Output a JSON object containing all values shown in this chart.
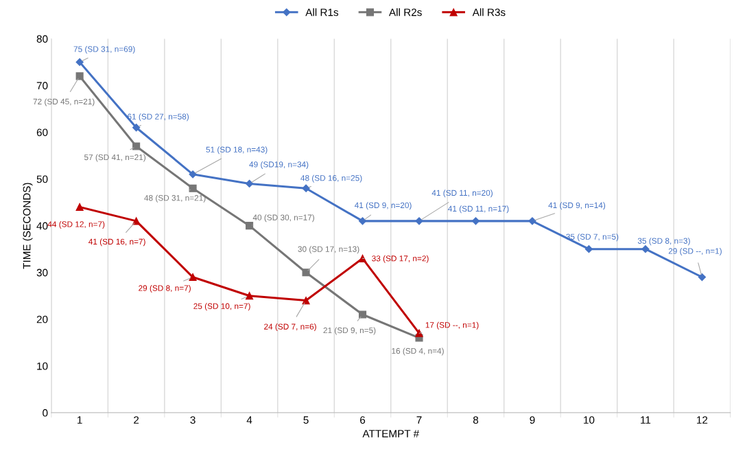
{
  "chart_data": {
    "type": "line",
    "xlabel": "ATTEMPT #",
    "ylabel": "TIME (SECONDS)",
    "categories": [
      "1",
      "2",
      "3",
      "4",
      "5",
      "6",
      "7",
      "8",
      "9",
      "10",
      "11",
      "12"
    ],
    "ylim": [
      0,
      80
    ],
    "yticks": [
      0,
      10,
      20,
      30,
      40,
      50,
      60,
      70,
      80
    ],
    "grid": "x",
    "legend": "top",
    "series": [
      {
        "name": "All R1s",
        "color": "#4472c4",
        "marker": "diamond",
        "values": [
          75,
          61,
          51,
          49,
          48,
          41,
          41,
          41,
          41,
          35,
          35,
          29
        ],
        "value_labels": [
          "75 (SD 31, n=69)",
          "61 (SD 27, n=58)",
          "51 (SD 18, n=43)",
          "49 (SD19, n=34)",
          "48 (SD 16, n=25)",
          "41 (SD 9, n=20)",
          "41 (SD 11, n=20)",
          "41 (SD 11, n=17)",
          "41 (SD 9, n=14)",
          "35 (SD 7, n=5)",
          "35 (SD 8, n=3)",
          "29 (SD --, n=1)"
        ]
      },
      {
        "name": "All R2s",
        "color": "#767676",
        "marker": "square",
        "values": [
          72,
          57,
          48,
          40,
          30,
          21,
          16,
          null,
          null,
          null,
          null,
          null
        ],
        "value_labels": [
          "72 (SD 45, n=21)",
          "57 (SD 41, n=21)",
          "48 (SD 31, n=21)",
          "40 (SD 30, n=17)",
          "30 (SD 17, n=13)",
          "21 (SD 9, n=5)",
          "16 (SD 4, n=4)",
          null,
          null,
          null,
          null,
          null
        ]
      },
      {
        "name": "All R3s",
        "color": "#c00000",
        "marker": "triangle",
        "values": [
          44,
          41,
          29,
          25,
          24,
          33,
          17,
          null,
          null,
          null,
          null,
          null
        ],
        "value_labels": [
          "44 (SD 12, n=7)",
          "41 (SD 16, n=7)",
          "29 (SD 8, n=7)",
          "25 (SD 10, n=7)",
          "24 (SD 7, n=6)",
          "33 (SD 17, n=2)",
          "17 (SD --, n=1)",
          null,
          null,
          null,
          null,
          null
        ]
      }
    ]
  }
}
